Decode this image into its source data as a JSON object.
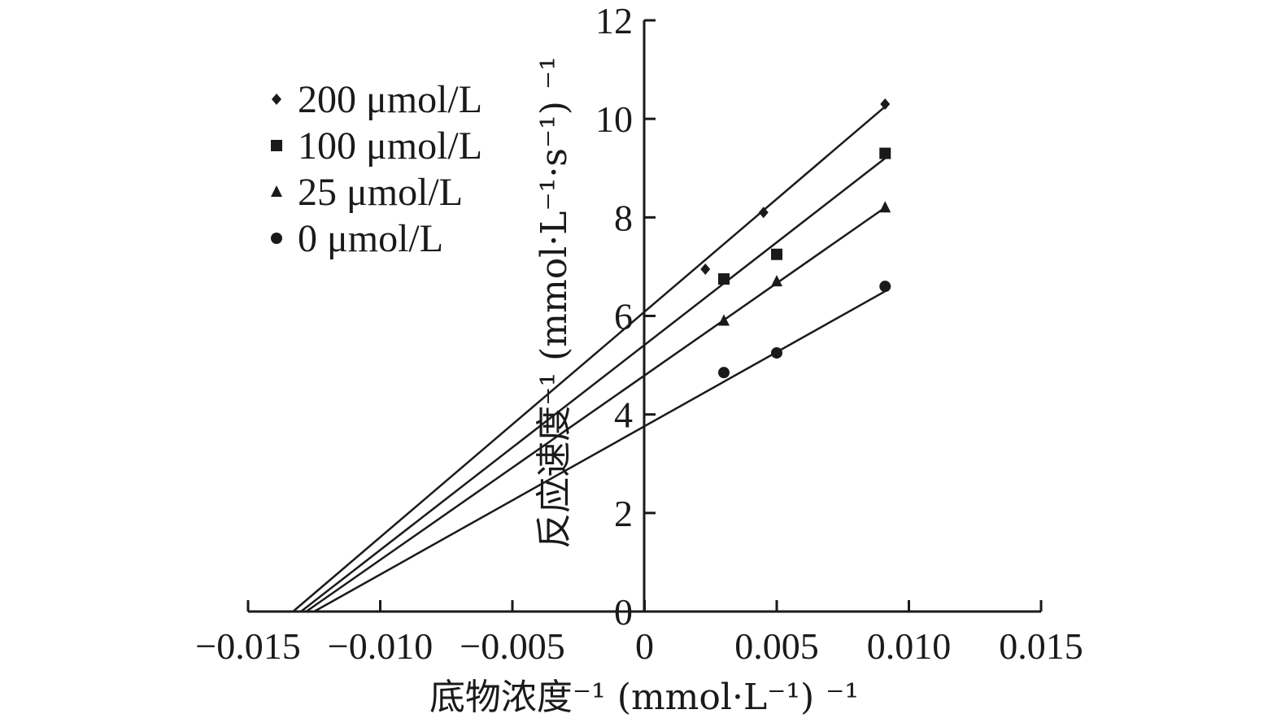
{
  "chart_data": {
    "type": "scatter",
    "xlabel": "底物浓度⁻¹ (mmol·L⁻¹) ⁻¹",
    "ylabel": "反应速度⁻¹ (mmol·L⁻¹·s⁻¹) ⁻¹",
    "xlim": [
      -0.015,
      0.015
    ],
    "ylim": [
      0,
      12
    ],
    "x_ticks": [
      -0.015,
      -0.01,
      -0.005,
      0,
      0.005,
      0.01,
      0.015
    ],
    "x_tick_labels": [
      "−0.015",
      "−0.010",
      "−0.005",
      "0",
      "0.005",
      "0.010",
      "0.015"
    ],
    "y_ticks": [
      0,
      2,
      4,
      6,
      8,
      10,
      12
    ],
    "y_tick_labels": [
      "0",
      "2",
      "4",
      "6",
      "8",
      "10",
      "12"
    ],
    "grid": false,
    "legend_position": "top-left",
    "series": [
      {
        "name": "200 μmol/L",
        "marker": "diamond",
        "points": [
          [
            0.0023,
            6.95
          ],
          [
            0.0045,
            8.1
          ],
          [
            0.0091,
            10.3
          ]
        ],
        "fit": [
          [
            -0.0133,
            0
          ],
          [
            0.0091,
            10.25
          ]
        ]
      },
      {
        "name": "100 μmol/L",
        "marker": "square",
        "points": [
          [
            0.003,
            6.75
          ],
          [
            0.005,
            7.25
          ],
          [
            0.0091,
            9.3
          ]
        ],
        "fit": [
          [
            -0.013,
            0
          ],
          [
            0.0091,
            9.2
          ]
        ]
      },
      {
        "name": "25 μmol/L",
        "marker": "triangle",
        "points": [
          [
            0.003,
            5.9
          ],
          [
            0.005,
            6.7
          ],
          [
            0.0091,
            8.2
          ]
        ],
        "fit": [
          [
            -0.0128,
            0
          ],
          [
            0.0091,
            8.2
          ]
        ]
      },
      {
        "name": "0 μmol/L",
        "marker": "circle",
        "points": [
          [
            0.003,
            4.85
          ],
          [
            0.005,
            5.25
          ],
          [
            0.0091,
            6.6
          ]
        ],
        "fit": [
          [
            -0.0125,
            0
          ],
          [
            0.0091,
            6.5
          ]
        ]
      }
    ]
  }
}
